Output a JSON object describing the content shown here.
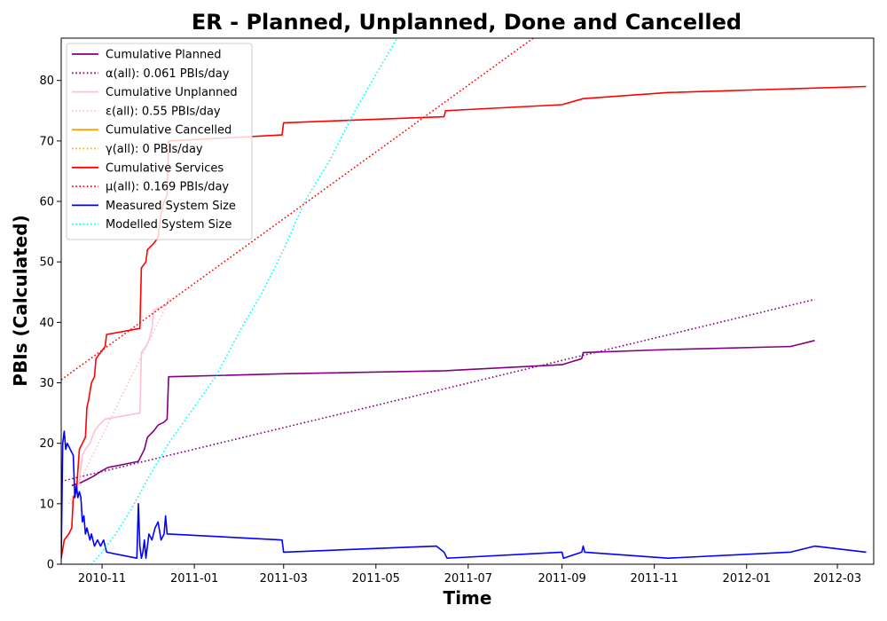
{
  "chart_data": {
    "type": "line",
    "title": "ER - Planned, Unplanned, Done  and Cancelled",
    "xlabel": "Time",
    "ylabel": "PBIs (Calculated)",
    "xlim": [
      "2010-10-05",
      "2012-03-25"
    ],
    "ylim": [
      0,
      87
    ],
    "xticks": [
      "2010-11",
      "2011-01",
      "2011-03",
      "2011-05",
      "2011-07",
      "2011-09",
      "2011-11",
      "2012-01",
      "2012-03"
    ],
    "yticks": [
      0,
      10,
      20,
      30,
      40,
      50,
      60,
      70,
      80
    ],
    "grid": false,
    "legend_position": "top-left",
    "series": [
      {
        "name": "Cumulative Planned",
        "style": "solid",
        "color": "#800080",
        "points": [
          [
            "2010-10-12",
            13
          ],
          [
            "2010-10-18",
            13.5
          ],
          [
            "2010-10-22",
            14
          ],
          [
            "2010-10-26",
            14.5
          ],
          [
            "2010-11-01",
            15.5
          ],
          [
            "2010-11-05",
            16
          ],
          [
            "2010-11-25",
            17
          ],
          [
            "2010-11-27",
            18
          ],
          [
            "2010-11-29",
            19
          ],
          [
            "2010-12-01",
            21
          ],
          [
            "2010-12-05",
            22
          ],
          [
            "2010-12-08",
            23
          ],
          [
            "2010-12-12",
            23.5
          ],
          [
            "2010-12-14",
            24
          ],
          [
            "2010-12-15",
            31
          ],
          [
            "2011-03-01",
            31.5
          ],
          [
            "2011-06-16",
            32
          ],
          [
            "2011-09-01",
            33
          ],
          [
            "2011-09-14",
            34
          ],
          [
            "2011-09-15",
            35
          ],
          [
            "2011-11-10",
            35.5
          ],
          [
            "2012-01-30",
            36
          ],
          [
            "2012-02-15",
            37
          ]
        ]
      },
      {
        "name": "α(all): 0.061 PBIs/day",
        "style": "dotted",
        "color": "#800080",
        "points": [
          [
            "2010-10-05",
            13.7
          ],
          [
            "2012-02-15",
            43.8
          ]
        ]
      },
      {
        "name": "Cumulative Unplanned",
        "style": "solid",
        "color": "#ffc0cb",
        "points": [
          [
            "2010-10-12",
            10
          ],
          [
            "2010-10-15",
            12
          ],
          [
            "2010-10-17",
            14
          ],
          [
            "2010-10-19",
            18
          ],
          [
            "2010-10-21",
            19
          ],
          [
            "2010-10-24",
            20
          ],
          [
            "2010-10-27",
            22
          ],
          [
            "2010-10-30",
            23
          ],
          [
            "2010-11-03",
            24
          ],
          [
            "2010-11-26",
            25
          ],
          [
            "2010-11-27",
            35
          ],
          [
            "2010-11-30",
            36
          ],
          [
            "2010-12-02",
            37
          ],
          [
            "2010-12-04",
            39
          ],
          [
            "2010-12-05",
            42
          ],
          [
            "2010-12-10",
            42.5
          ],
          [
            "2010-12-14",
            43
          ],
          [
            "2010-12-15",
            44
          ]
        ]
      },
      {
        "name": "ε(all): 0.55 PBIs/day",
        "style": "dotted",
        "color": "#ffc0cb",
        "points": [
          [
            "2010-10-10",
            10
          ],
          [
            "2010-12-15",
            43.5
          ]
        ]
      },
      {
        "name": "Cumulative Cancelled",
        "style": "solid",
        "color": "#ffa500",
        "points": []
      },
      {
        "name": "γ(all): 0 PBIs/day",
        "style": "dotted",
        "color": "#ffa500",
        "points": []
      },
      {
        "name": "Cumulative Services",
        "style": "solid",
        "color": "#ff0000",
        "points": [
          [
            "2010-10-05",
            1
          ],
          [
            "2010-10-07",
            4
          ],
          [
            "2010-10-10",
            5
          ],
          [
            "2010-10-12",
            6
          ],
          [
            "2010-10-13",
            11
          ],
          [
            "2010-10-15",
            12
          ],
          [
            "2010-10-17",
            19
          ],
          [
            "2010-10-19",
            20
          ],
          [
            "2010-10-21",
            21
          ],
          [
            "2010-10-22",
            26
          ],
          [
            "2010-10-23",
            27
          ],
          [
            "2010-10-25",
            30
          ],
          [
            "2010-10-27",
            31
          ],
          [
            "2010-10-28",
            34
          ],
          [
            "2010-10-31",
            35
          ],
          [
            "2010-11-03",
            36
          ],
          [
            "2010-11-04",
            38
          ],
          [
            "2010-11-26",
            39
          ],
          [
            "2010-11-27",
            49
          ],
          [
            "2010-11-30",
            50
          ],
          [
            "2010-12-01",
            52
          ],
          [
            "2010-12-05",
            53
          ],
          [
            "2010-12-08",
            54
          ],
          [
            "2010-12-10",
            58
          ],
          [
            "2010-12-12",
            60
          ],
          [
            "2010-12-14",
            61
          ],
          [
            "2010-12-15",
            70
          ],
          [
            "2011-02-28",
            71
          ],
          [
            "2011-03-01",
            73
          ],
          [
            "2011-06-15",
            74
          ],
          [
            "2011-06-16",
            75
          ],
          [
            "2011-09-01",
            76
          ],
          [
            "2011-09-15",
            77
          ],
          [
            "2011-11-10",
            78
          ],
          [
            "2012-03-20",
            79
          ]
        ]
      },
      {
        "name": "μ(all): 0.169 PBIs/day",
        "style": "dotted",
        "color": "#ff0000",
        "points": [
          [
            "2010-10-05",
            30.5
          ],
          [
            "2011-08-13",
            87
          ]
        ]
      },
      {
        "name": "Measured System Size",
        "style": "solid",
        "color": "#0000ff",
        "points": [
          [
            "2010-10-05",
            1
          ],
          [
            "2010-10-06",
            20
          ],
          [
            "2010-10-07",
            22
          ],
          [
            "2010-10-08",
            19
          ],
          [
            "2010-10-09",
            20
          ],
          [
            "2010-10-11",
            19
          ],
          [
            "2010-10-13",
            18
          ],
          [
            "2010-10-14",
            11
          ],
          [
            "2010-10-15",
            13
          ],
          [
            "2010-10-16",
            11
          ],
          [
            "2010-10-17",
            12
          ],
          [
            "2010-10-18",
            11
          ],
          [
            "2010-10-19",
            7
          ],
          [
            "2010-10-20",
            8
          ],
          [
            "2010-10-21",
            5
          ],
          [
            "2010-10-22",
            6
          ],
          [
            "2010-10-24",
            4
          ],
          [
            "2010-10-25",
            5
          ],
          [
            "2010-10-27",
            3
          ],
          [
            "2010-10-29",
            4
          ],
          [
            "2010-10-31",
            3
          ],
          [
            "2010-11-02",
            4
          ],
          [
            "2010-11-04",
            2
          ],
          [
            "2010-11-24",
            1
          ],
          [
            "2010-11-25",
            10
          ],
          [
            "2010-11-26",
            3
          ],
          [
            "2010-11-27",
            1
          ],
          [
            "2010-11-28",
            2
          ],
          [
            "2010-11-29",
            4
          ],
          [
            "2010-11-30",
            1
          ],
          [
            "2010-12-02",
            5
          ],
          [
            "2010-12-04",
            4
          ],
          [
            "2010-12-06",
            6
          ],
          [
            "2010-12-08",
            7
          ],
          [
            "2010-12-10",
            4
          ],
          [
            "2010-12-12",
            5
          ],
          [
            "2010-12-13",
            8
          ],
          [
            "2010-12-14",
            5
          ],
          [
            "2010-12-15",
            5
          ],
          [
            "2011-02-28",
            4
          ],
          [
            "2011-03-01",
            2
          ],
          [
            "2011-06-10",
            3
          ],
          [
            "2011-06-15",
            2
          ],
          [
            "2011-06-17",
            1
          ],
          [
            "2011-09-01",
            2
          ],
          [
            "2011-09-02",
            1
          ],
          [
            "2011-09-14",
            2
          ],
          [
            "2011-09-15",
            3
          ],
          [
            "2011-09-16",
            2
          ],
          [
            "2011-11-10",
            1
          ],
          [
            "2012-01-30",
            2
          ],
          [
            "2012-02-15",
            3
          ],
          [
            "2012-03-20",
            2
          ]
        ]
      },
      {
        "name": "Modelled System Size",
        "style": "dotted",
        "color": "#00ffff",
        "points": [
          [
            "2010-10-05",
            0
          ],
          [
            "2010-10-25",
            0
          ],
          [
            "2010-11-01",
            2
          ],
          [
            "2010-11-10",
            5
          ],
          [
            "2010-11-20",
            9
          ],
          [
            "2010-12-01",
            14
          ],
          [
            "2010-12-15",
            20
          ],
          [
            "2011-01-01",
            26
          ],
          [
            "2011-01-15",
            31
          ],
          [
            "2011-02-01",
            39
          ],
          [
            "2011-02-15",
            45
          ],
          [
            "2011-03-01",
            52
          ],
          [
            "2011-03-15",
            60
          ],
          [
            "2011-04-01",
            67
          ],
          [
            "2011-04-15",
            74
          ],
          [
            "2011-05-01",
            81
          ],
          [
            "2011-05-15",
            87
          ]
        ]
      }
    ]
  }
}
